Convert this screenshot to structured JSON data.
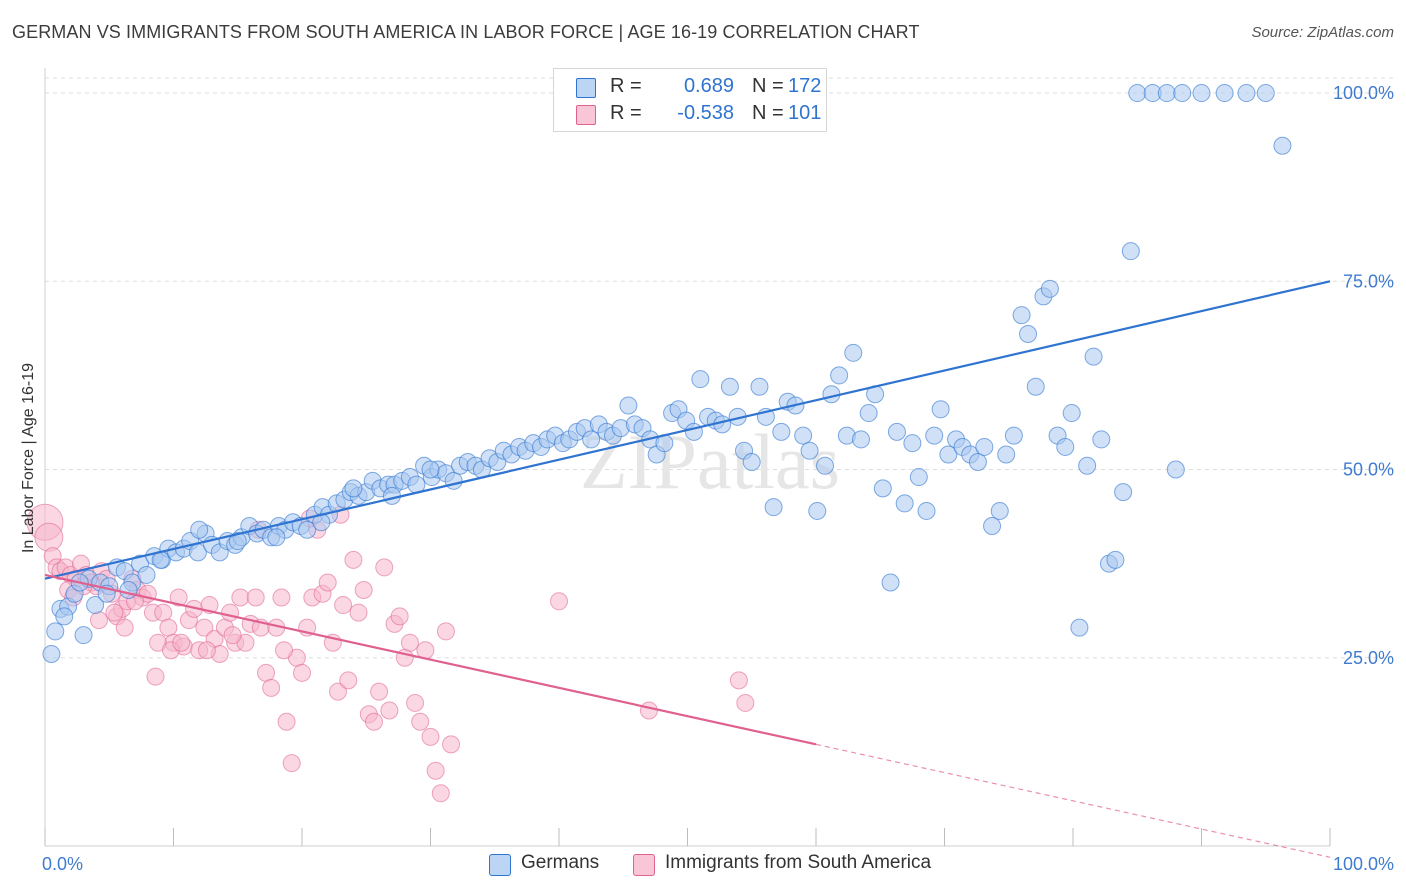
{
  "title": "GERMAN VS IMMIGRANTS FROM SOUTH AMERICA IN LABOR FORCE | AGE 16-19 CORRELATION CHART",
  "source": "Source: ZipAtlas.com",
  "watermark": "ZIPatlas",
  "colors": {
    "blue": "#2f74d0",
    "blue_fill": "#a9c8f0",
    "pink": "#e0608f",
    "pink_fill": "#f5b6cc",
    "grid": "#dddddd",
    "axis_text": "#3f7bd0"
  },
  "legend": {
    "rows": [
      {
        "r_label": "R =",
        "r_value": "0.689",
        "n_label": "N =",
        "n_value": "172"
      },
      {
        "r_label": "R =",
        "r_value": "-0.538",
        "n_label": "N =",
        "n_value": "101"
      }
    ]
  },
  "bottom_legend": {
    "germans": "Germans",
    "immigrants": "Immigrants from South America"
  },
  "chart_data": {
    "type": "scatter",
    "title": "GERMAN VS IMMIGRANTS FROM SOUTH AMERICA IN LABOR FORCE | AGE 16-19 CORRELATION CHART",
    "ylabel": "In Labor Force | Age 16-19",
    "xlim": [
      0,
      100
    ],
    "ylim": [
      0,
      102
    ],
    "x_tick_labels": [
      "0.0%",
      "100.0%"
    ],
    "y_tick_labels": [
      "25.0%",
      "50.0%",
      "75.0%",
      "100.0%"
    ],
    "y_ticks": [
      25,
      50,
      75,
      100
    ],
    "grid": true,
    "legend_position": "top-center",
    "series": [
      {
        "name": "Germans",
        "color": "#2f74d0",
        "trend": {
          "x": [
            0,
            100
          ],
          "y": [
            35.5,
            75.0
          ]
        },
        "points": [
          [
            0.5,
            25.5
          ],
          [
            0.8,
            28.5
          ],
          [
            1.2,
            31.5
          ],
          [
            1.8,
            31.8
          ],
          [
            2.3,
            33.5
          ],
          [
            3.0,
            28.0
          ],
          [
            3.4,
            35.5
          ],
          [
            3.9,
            32.0
          ],
          [
            4.3,
            35.0
          ],
          [
            5.0,
            34.5
          ],
          [
            5.6,
            37.0
          ],
          [
            6.2,
            36.5
          ],
          [
            6.8,
            35.0
          ],
          [
            7.4,
            37.5
          ],
          [
            7.9,
            36.0
          ],
          [
            8.5,
            38.5
          ],
          [
            9.1,
            38.0
          ],
          [
            9.6,
            39.5
          ],
          [
            10.2,
            39.0
          ],
          [
            10.8,
            39.5
          ],
          [
            11.3,
            40.5
          ],
          [
            11.9,
            39.0
          ],
          [
            12.5,
            41.5
          ],
          [
            13.0,
            40.0
          ],
          [
            13.6,
            39.0
          ],
          [
            14.2,
            40.5
          ],
          [
            14.8,
            40.0
          ],
          [
            15.3,
            41.0
          ],
          [
            15.9,
            42.5
          ],
          [
            16.5,
            41.5
          ],
          [
            17.0,
            42.0
          ],
          [
            17.6,
            41.0
          ],
          [
            18.2,
            42.5
          ],
          [
            18.7,
            42.0
          ],
          [
            19.3,
            43.0
          ],
          [
            19.9,
            42.5
          ],
          [
            20.4,
            42.0
          ],
          [
            21.0,
            44.0
          ],
          [
            21.6,
            45.0
          ],
          [
            22.1,
            44.0
          ],
          [
            22.7,
            45.5
          ],
          [
            23.3,
            46.0
          ],
          [
            23.8,
            47.0
          ],
          [
            24.4,
            46.5
          ],
          [
            25.0,
            47.0
          ],
          [
            25.5,
            48.5
          ],
          [
            26.1,
            47.5
          ],
          [
            26.7,
            48.0
          ],
          [
            27.2,
            48.0
          ],
          [
            27.8,
            48.5
          ],
          [
            28.4,
            49.0
          ],
          [
            28.9,
            48.0
          ],
          [
            29.5,
            50.5
          ],
          [
            30.1,
            49.0
          ],
          [
            30.6,
            50.0
          ],
          [
            31.2,
            49.5
          ],
          [
            31.8,
            48.5
          ],
          [
            32.3,
            50.5
          ],
          [
            32.9,
            51.0
          ],
          [
            33.5,
            50.5
          ],
          [
            34.0,
            50.0
          ],
          [
            34.6,
            51.5
          ],
          [
            35.2,
            51.0
          ],
          [
            35.7,
            52.5
          ],
          [
            36.3,
            52.0
          ],
          [
            36.9,
            53.0
          ],
          [
            37.4,
            52.5
          ],
          [
            38.0,
            53.5
          ],
          [
            38.6,
            53.0
          ],
          [
            39.1,
            54.0
          ],
          [
            39.7,
            54.5
          ],
          [
            40.3,
            53.5
          ],
          [
            40.8,
            54.0
          ],
          [
            41.4,
            55.0
          ],
          [
            42.0,
            55.5
          ],
          [
            42.5,
            54.0
          ],
          [
            43.1,
            56.0
          ],
          [
            43.7,
            55.0
          ],
          [
            44.2,
            54.5
          ],
          [
            44.8,
            55.5
          ],
          [
            45.4,
            58.5
          ],
          [
            45.9,
            56.0
          ],
          [
            46.5,
            55.5
          ],
          [
            47.1,
            54.0
          ],
          [
            47.6,
            52.0
          ],
          [
            48.2,
            53.5
          ],
          [
            48.8,
            57.5
          ],
          [
            49.3,
            58.0
          ],
          [
            49.9,
            56.5
          ],
          [
            50.5,
            55.0
          ],
          [
            51.0,
            62.0
          ],
          [
            51.6,
            57.0
          ],
          [
            52.2,
            56.5
          ],
          [
            52.7,
            56.0
          ],
          [
            53.3,
            61.0
          ],
          [
            53.9,
            57.0
          ],
          [
            54.4,
            52.5
          ],
          [
            55.0,
            51.0
          ],
          [
            55.6,
            61.0
          ],
          [
            56.1,
            57.0
          ],
          [
            56.7,
            45.0
          ],
          [
            57.3,
            55.0
          ],
          [
            57.8,
            59.0
          ],
          [
            58.4,
            58.5
          ],
          [
            59.0,
            54.5
          ],
          [
            59.5,
            52.5
          ],
          [
            60.1,
            44.5
          ],
          [
            60.7,
            50.5
          ],
          [
            61.2,
            60.0
          ],
          [
            61.8,
            62.5
          ],
          [
            62.4,
            54.5
          ],
          [
            62.9,
            65.5
          ],
          [
            63.5,
            54.0
          ],
          [
            64.1,
            57.5
          ],
          [
            64.6,
            60.0
          ],
          [
            65.2,
            47.5
          ],
          [
            65.8,
            35.0
          ],
          [
            66.3,
            55.0
          ],
          [
            66.9,
            45.5
          ],
          [
            67.5,
            53.5
          ],
          [
            68.0,
            49.0
          ],
          [
            68.6,
            44.5
          ],
          [
            69.2,
            54.5
          ],
          [
            69.7,
            58.0
          ],
          [
            70.3,
            52.0
          ],
          [
            70.9,
            54.0
          ],
          [
            71.4,
            53.0
          ],
          [
            72.0,
            52.0
          ],
          [
            72.6,
            51.0
          ],
          [
            73.1,
            53.0
          ],
          [
            73.7,
            42.5
          ],
          [
            74.3,
            44.5
          ],
          [
            74.8,
            52.0
          ],
          [
            75.4,
            54.5
          ],
          [
            76.0,
            70.5
          ],
          [
            76.5,
            68.0
          ],
          [
            77.1,
            61.0
          ],
          [
            77.7,
            73.0
          ],
          [
            78.2,
            74.0
          ],
          [
            78.8,
            54.5
          ],
          [
            79.4,
            53.0
          ],
          [
            79.9,
            57.5
          ],
          [
            80.5,
            29.0
          ],
          [
            81.1,
            50.5
          ],
          [
            81.6,
            65.0
          ],
          [
            82.2,
            54.0
          ],
          [
            82.8,
            37.5
          ],
          [
            83.3,
            38.0
          ],
          [
            83.9,
            47.0
          ],
          [
            85.0,
            100.0
          ],
          [
            86.2,
            100.0
          ],
          [
            87.3,
            100.0
          ],
          [
            88.5,
            100.0
          ],
          [
            90.0,
            100.0
          ],
          [
            91.8,
            100.0
          ],
          [
            93.5,
            100.0
          ],
          [
            95.0,
            100.0
          ],
          [
            96.3,
            93.0
          ],
          [
            84.5,
            79.0
          ],
          [
            88.0,
            50.0
          ],
          [
            1.5,
            30.5
          ],
          [
            2.7,
            35.0
          ],
          [
            4.8,
            33.5
          ],
          [
            6.5,
            34.0
          ],
          [
            9.0,
            38.0
          ],
          [
            12.0,
            42.0
          ],
          [
            15.0,
            40.5
          ],
          [
            18.0,
            41.0
          ],
          [
            21.5,
            43.0
          ],
          [
            24.0,
            47.5
          ],
          [
            27.0,
            46.5
          ],
          [
            30.0,
            50.0
          ]
        ]
      },
      {
        "name": "Immigrants from South America",
        "color": "#e0608f",
        "trend": {
          "x": [
            0,
            60
          ],
          "y": [
            36.0,
            13.5
          ]
        },
        "trend_dashed": {
          "x": [
            60,
            100
          ],
          "y": [
            13.5,
            -1.5
          ]
        },
        "points": [
          [
            0.0,
            43.0
          ],
          [
            0.3,
            41.0
          ],
          [
            0.6,
            38.5
          ],
          [
            0.9,
            37.0
          ],
          [
            1.2,
            36.5
          ],
          [
            1.6,
            37.0
          ],
          [
            2.0,
            36.0
          ],
          [
            2.4,
            35.5
          ],
          [
            2.8,
            37.5
          ],
          [
            3.2,
            36.0
          ],
          [
            3.6,
            35.0
          ],
          [
            4.0,
            34.5
          ],
          [
            4.4,
            36.5
          ],
          [
            4.8,
            35.5
          ],
          [
            5.2,
            33.5
          ],
          [
            5.6,
            30.5
          ],
          [
            6.0,
            31.5
          ],
          [
            6.4,
            32.5
          ],
          [
            6.8,
            35.5
          ],
          [
            7.2,
            34.0
          ],
          [
            7.6,
            33.0
          ],
          [
            8.0,
            33.5
          ],
          [
            8.4,
            31.0
          ],
          [
            8.8,
            27.0
          ],
          [
            9.2,
            31.0
          ],
          [
            9.6,
            29.0
          ],
          [
            10.0,
            27.0
          ],
          [
            10.4,
            33.0
          ],
          [
            10.8,
            26.5
          ],
          [
            11.2,
            30.0
          ],
          [
            11.6,
            31.5
          ],
          [
            12.0,
            26.0
          ],
          [
            12.4,
            29.0
          ],
          [
            12.8,
            32.0
          ],
          [
            13.2,
            27.5
          ],
          [
            13.6,
            25.5
          ],
          [
            14.0,
            29.0
          ],
          [
            14.4,
            31.0
          ],
          [
            14.8,
            27.0
          ],
          [
            15.2,
            33.0
          ],
          [
            15.6,
            27.0
          ],
          [
            16.0,
            29.5
          ],
          [
            16.4,
            33.0
          ],
          [
            16.8,
            29.0
          ],
          [
            17.2,
            23.0
          ],
          [
            17.6,
            21.0
          ],
          [
            18.0,
            29.0
          ],
          [
            18.4,
            33.0
          ],
          [
            18.8,
            16.5
          ],
          [
            19.2,
            11.0
          ],
          [
            19.6,
            25.0
          ],
          [
            20.0,
            23.0
          ],
          [
            20.4,
            29.0
          ],
          [
            20.8,
            33.0
          ],
          [
            21.2,
            42.0
          ],
          [
            21.6,
            33.5
          ],
          [
            22.0,
            35.0
          ],
          [
            22.4,
            27.0
          ],
          [
            22.8,
            20.5
          ],
          [
            23.2,
            32.0
          ],
          [
            23.6,
            22.0
          ],
          [
            24.0,
            38.0
          ],
          [
            24.4,
            31.0
          ],
          [
            24.8,
            34.0
          ],
          [
            25.2,
            17.5
          ],
          [
            25.6,
            16.5
          ],
          [
            26.0,
            20.5
          ],
          [
            26.4,
            37.0
          ],
          [
            26.8,
            18.0
          ],
          [
            27.2,
            29.5
          ],
          [
            27.6,
            30.5
          ],
          [
            28.0,
            25.0
          ],
          [
            28.4,
            27.0
          ],
          [
            28.8,
            19.0
          ],
          [
            29.2,
            16.5
          ],
          [
            29.6,
            26.0
          ],
          [
            30.0,
            14.5
          ],
          [
            30.4,
            10.0
          ],
          [
            30.8,
            7.0
          ],
          [
            31.2,
            28.5
          ],
          [
            31.6,
            13.5
          ],
          [
            1.8,
            34.0
          ],
          [
            3.0,
            34.5
          ],
          [
            5.4,
            31.0
          ],
          [
            7.0,
            32.5
          ],
          [
            9.8,
            26.0
          ],
          [
            12.6,
            26.0
          ],
          [
            14.6,
            28.0
          ],
          [
            16.6,
            42.0
          ],
          [
            18.6,
            26.0
          ],
          [
            20.6,
            43.5
          ],
          [
            23.0,
            44.0
          ],
          [
            8.6,
            22.5
          ],
          [
            4.2,
            30.0
          ],
          [
            10.6,
            27.0
          ],
          [
            40.0,
            32.5
          ],
          [
            47.0,
            18.0
          ],
          [
            54.0,
            22.0
          ],
          [
            54.5,
            19.0
          ],
          [
            2.2,
            33.0
          ],
          [
            6.2,
            29.0
          ]
        ]
      }
    ]
  }
}
